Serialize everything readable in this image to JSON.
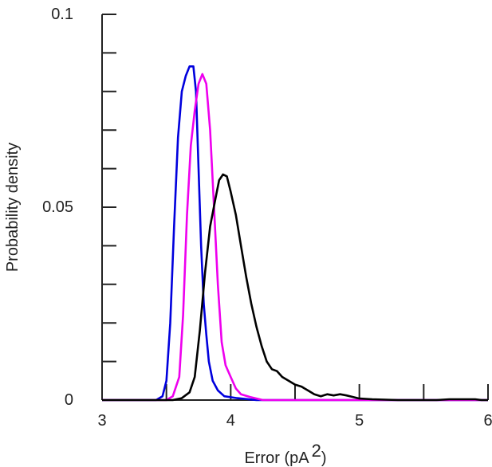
{
  "chart_data": {
    "type": "line",
    "xlabel": "Error (pA",
    "xlabel_superscript": "2",
    "xlabel_close": ")",
    "ylabel": "Probability density",
    "xlim": [
      3,
      6
    ],
    "ylim": [
      0,
      0.1
    ],
    "x_ticks": [
      {
        "value": 3,
        "label": "3"
      },
      {
        "value": 4,
        "label": "4"
      },
      {
        "value": 5,
        "label": "5"
      },
      {
        "value": 6,
        "label": "6"
      }
    ],
    "x_minor_ticks": [
      3.5,
      4.5,
      5.5
    ],
    "y_ticks": [
      {
        "value": 0,
        "label": "0"
      },
      {
        "value": 0.05,
        "label": "0.05"
      },
      {
        "value": 0.1,
        "label": "0.1"
      }
    ],
    "y_minor_ticks": [
      0.01,
      0.02,
      0.03,
      0.04,
      0.06,
      0.07,
      0.08,
      0.09
    ],
    "grid": false,
    "series": [
      {
        "color": "#0000dd",
        "points": [
          [
            3.0,
            0
          ],
          [
            3.42,
            0
          ],
          [
            3.47,
            0.001
          ],
          [
            3.5,
            0.005
          ],
          [
            3.53,
            0.02
          ],
          [
            3.56,
            0.045
          ],
          [
            3.59,
            0.068
          ],
          [
            3.62,
            0.08
          ],
          [
            3.65,
            0.084
          ],
          [
            3.68,
            0.0865
          ],
          [
            3.71,
            0.0865
          ],
          [
            3.73,
            0.08
          ],
          [
            3.75,
            0.06
          ],
          [
            3.77,
            0.04
          ],
          [
            3.79,
            0.025
          ],
          [
            3.81,
            0.017
          ],
          [
            3.83,
            0.01
          ],
          [
            3.86,
            0.005
          ],
          [
            3.9,
            0.0025
          ],
          [
            3.95,
            0.001
          ],
          [
            4.05,
            0.0005
          ],
          [
            4.2,
            0
          ],
          [
            6.0,
            0
          ]
        ]
      },
      {
        "color": "#ee00ee",
        "points": [
          [
            3.0,
            0
          ],
          [
            3.5,
            0
          ],
          [
            3.55,
            0.001
          ],
          [
            3.6,
            0.006
          ],
          [
            3.63,
            0.022
          ],
          [
            3.66,
            0.048
          ],
          [
            3.69,
            0.066
          ],
          [
            3.72,
            0.075
          ],
          [
            3.75,
            0.082
          ],
          [
            3.78,
            0.0845
          ],
          [
            3.81,
            0.082
          ],
          [
            3.84,
            0.07
          ],
          [
            3.87,
            0.05
          ],
          [
            3.9,
            0.03
          ],
          [
            3.93,
            0.015
          ],
          [
            3.96,
            0.009
          ],
          [
            4.0,
            0.006
          ],
          [
            4.04,
            0.003
          ],
          [
            4.08,
            0.0015
          ],
          [
            4.15,
            0.0008
          ],
          [
            4.25,
            0
          ],
          [
            6.0,
            0
          ]
        ]
      },
      {
        "color": "#000000",
        "points": [
          [
            3.0,
            0
          ],
          [
            3.55,
            0
          ],
          [
            3.62,
            0.0005
          ],
          [
            3.68,
            0.002
          ],
          [
            3.72,
            0.006
          ],
          [
            3.76,
            0.018
          ],
          [
            3.8,
            0.033
          ],
          [
            3.84,
            0.045
          ],
          [
            3.88,
            0.052
          ],
          [
            3.91,
            0.057
          ],
          [
            3.94,
            0.0585
          ],
          [
            3.97,
            0.058
          ],
          [
            4.0,
            0.054
          ],
          [
            4.04,
            0.048
          ],
          [
            4.08,
            0.04
          ],
          [
            4.12,
            0.032
          ],
          [
            4.16,
            0.025
          ],
          [
            4.2,
            0.019
          ],
          [
            4.24,
            0.014
          ],
          [
            4.28,
            0.01
          ],
          [
            4.32,
            0.008
          ],
          [
            4.36,
            0.0075
          ],
          [
            4.4,
            0.006
          ],
          [
            4.45,
            0.005
          ],
          [
            4.5,
            0.004
          ],
          [
            4.55,
            0.0035
          ],
          [
            4.6,
            0.0025
          ],
          [
            4.65,
            0.0015
          ],
          [
            4.7,
            0.001
          ],
          [
            4.75,
            0.0015
          ],
          [
            4.8,
            0.0012
          ],
          [
            4.85,
            0.0015
          ],
          [
            4.9,
            0.0012
          ],
          [
            4.95,
            0.0008
          ],
          [
            5.0,
            0.0004
          ],
          [
            5.1,
            0.0002
          ],
          [
            5.2,
            0.0001
          ],
          [
            5.3,
            0
          ],
          [
            5.6,
            0
          ],
          [
            5.7,
            0.0002
          ],
          [
            5.9,
            0.0002
          ],
          [
            5.95,
            0
          ],
          [
            6.0,
            0
          ]
        ]
      }
    ]
  }
}
